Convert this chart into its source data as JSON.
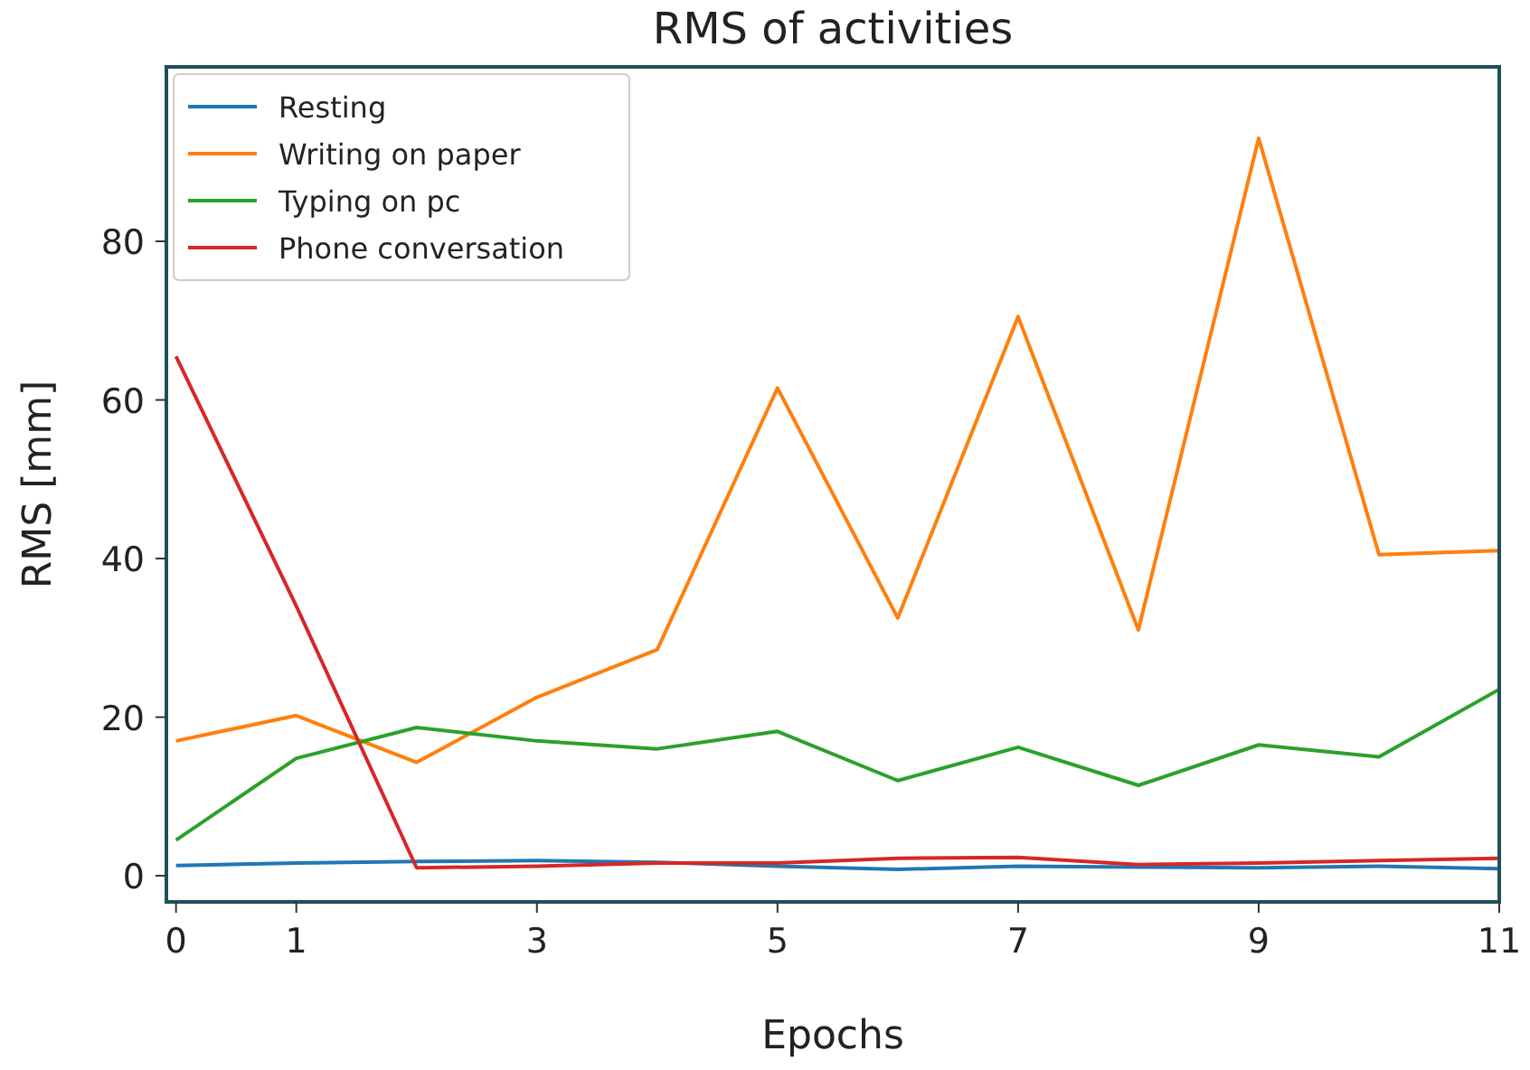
{
  "chart_data": {
    "type": "line",
    "title": "RMS of activities",
    "xlabel": "Epochs",
    "ylabel": "RMS [mm]",
    "x": [
      0,
      1,
      2,
      3,
      4,
      5,
      6,
      7,
      8,
      9,
      10,
      11
    ],
    "xlim": [
      -0.08,
      11
    ],
    "xticks": [
      0,
      1,
      3,
      5,
      7,
      9,
      11
    ],
    "ylim": [
      -3.3,
      102
    ],
    "yticks": [
      0,
      20,
      40,
      60,
      80
    ],
    "grid": false,
    "legend": "top left",
    "series": [
      {
        "name": "Resting",
        "color": "#1f77b4",
        "values": [
          1.3,
          1.6,
          1.8,
          1.9,
          1.7,
          1.2,
          0.8,
          1.2,
          1.1,
          1.0,
          1.2,
          0.9
        ]
      },
      {
        "name": "Writing on paper",
        "color": "#ff7f0e",
        "values": [
          17,
          20.2,
          14.3,
          22.5,
          28.5,
          61.5,
          32.5,
          70.5,
          31,
          93,
          40.5,
          41
        ]
      },
      {
        "name": "Typing on pc",
        "color": "#2ca02c",
        "values": [
          4.5,
          14.8,
          18.7,
          17,
          16,
          18.2,
          12,
          16.2,
          11.4,
          16.5,
          15,
          23.5
        ]
      },
      {
        "name": "Phone conversation",
        "color": "#d62728",
        "values": [
          65.5,
          34,
          1,
          1.2,
          1.6,
          1.6,
          2.2,
          2.3,
          1.4,
          1.6,
          1.9,
          2.2
        ]
      }
    ]
  }
}
